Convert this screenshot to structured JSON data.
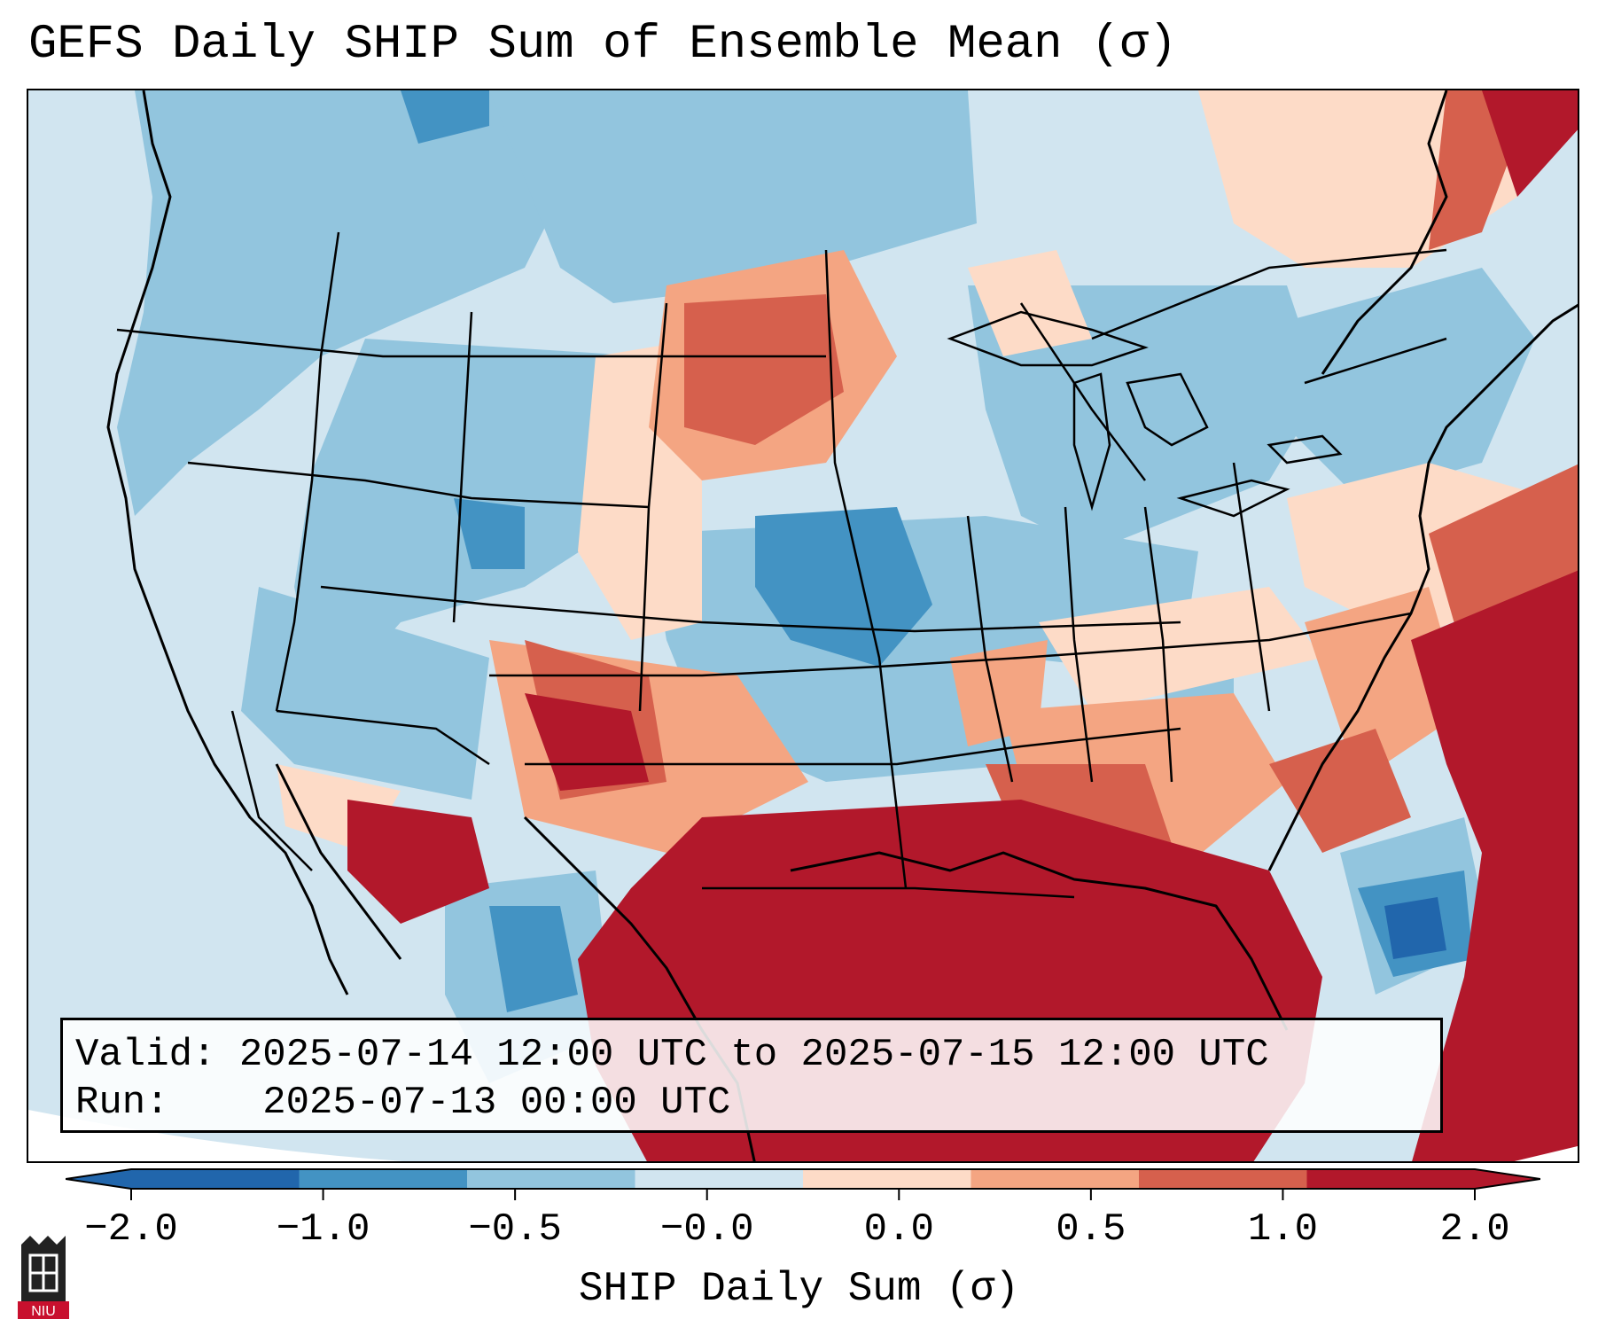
{
  "title": "GEFS Daily SHIP Sum of Ensemble Mean (σ)",
  "info": {
    "valid_label": "Valid:",
    "valid_value": "2025-07-14 12:00 UTC to 2025-07-15 12:00 UTC",
    "run_label": "Run:",
    "run_value": "2025-07-13 00:00 UTC"
  },
  "colorbar": {
    "title": "SHIP Daily Sum (σ)",
    "ticks": [
      "−2.0",
      "−1.0",
      "−0.5",
      "−0.0",
      "0.0",
      "0.5",
      "1.0",
      "2.0"
    ],
    "colors": [
      "#2166ac",
      "#4393c3",
      "#92c5de",
      "#d1e5f0",
      "#fddbc7",
      "#f4a582",
      "#d6604d",
      "#b2182b"
    ]
  },
  "logo": {
    "text": "NIU",
    "color": "#c8102e"
  }
}
